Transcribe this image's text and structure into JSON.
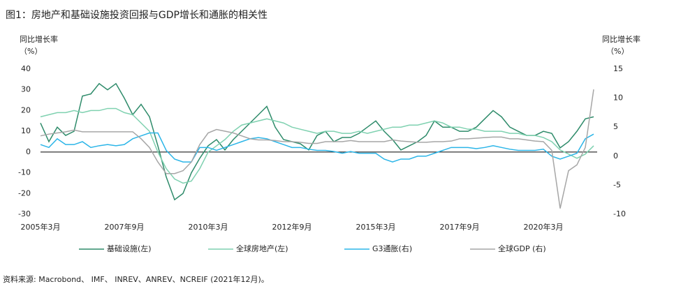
{
  "chart_data": {
    "type": "line",
    "title": "图1：房地产和基础设施投资回报与GDP增长和通胀的相关性",
    "ylabel": "同比增长率",
    "yunit": "（%）",
    "y2label": "同比增长率",
    "y2unit": "（%）",
    "source": "资料来源: Macrobond、 IMF、 INREV、ANREV、NCREIF (2021年12月)。",
    "categories": [
      "2005年3月",
      null,
      null,
      null,
      null,
      null,
      null,
      null,
      null,
      null,
      "2007年9月",
      null,
      null,
      null,
      null,
      null,
      null,
      null,
      null,
      null,
      "2010年3月",
      null,
      null,
      null,
      null,
      null,
      null,
      null,
      null,
      null,
      "2012年9月",
      null,
      null,
      null,
      null,
      null,
      null,
      null,
      null,
      null,
      "2015年3月",
      null,
      null,
      null,
      null,
      null,
      null,
      null,
      null,
      null,
      "2017年9月",
      null,
      null,
      null,
      null,
      null,
      null,
      null,
      null,
      null,
      "2020年3月",
      null,
      null,
      null,
      null,
      null,
      null
    ],
    "ylim": [
      -30,
      40
    ],
    "yticks": [
      -30,
      -20,
      -10,
      0,
      10,
      20,
      30,
      40
    ],
    "y2lim": [
      -10,
      15
    ],
    "y2ticks": [
      -10,
      -5,
      0,
      5,
      10,
      15
    ],
    "series": [
      {
        "name": "基础设施(左)",
        "color": "#2e8b6a",
        "values": [
          14,
          5,
          12,
          8,
          10,
          27,
          28,
          33,
          30,
          33,
          26,
          18,
          23,
          17,
          3,
          -12,
          -23,
          -20,
          -10,
          -3,
          3,
          6,
          1,
          6,
          10,
          14,
          18,
          22,
          12,
          6,
          5,
          4,
          1,
          8,
          10,
          5,
          7,
          7,
          9,
          12,
          15,
          10,
          6,
          1,
          3,
          5,
          8,
          15,
          12,
          12,
          10,
          10,
          12,
          16,
          20,
          17,
          12,
          10,
          8,
          8,
          10,
          9,
          2,
          5,
          10,
          16,
          17
        ]
      },
      {
        "name": "全球房地产(左)",
        "color": "#7fd1b0",
        "values": [
          17,
          18,
          19,
          19,
          20,
          19,
          20,
          20,
          21,
          21,
          19,
          18,
          14,
          10,
          0,
          -8,
          -13,
          -15,
          -14,
          -8,
          0,
          3,
          6,
          10,
          13,
          14,
          15,
          16,
          15,
          14,
          12,
          11,
          10,
          9,
          10,
          10,
          9,
          9,
          10,
          9,
          10,
          11,
          12,
          12,
          13,
          13,
          14,
          15,
          14,
          12,
          12,
          11,
          11,
          10,
          10,
          10,
          9,
          9,
          8,
          8,
          7,
          5,
          1,
          -1,
          -3,
          -1,
          3
        ]
      },
      {
        "name": "G3通胀(右)",
        "color": "#2bb5e8",
        "axis": "y2",
        "values": [
          2,
          1.5,
          3,
          2,
          2,
          2.5,
          1.5,
          1.8,
          2,
          1.8,
          2,
          3,
          3.5,
          4,
          4,
          1,
          -0.5,
          -1,
          -1,
          1.5,
          1.5,
          1,
          1.5,
          2,
          2.5,
          3,
          3.2,
          3,
          2.5,
          2,
          1.5,
          1.5,
          1.2,
          1,
          1,
          0.8,
          0.5,
          0.8,
          0.5,
          0.5,
          0.5,
          -0.5,
          -1,
          -0.5,
          -0.5,
          0,
          0,
          0.5,
          1,
          1.5,
          1.5,
          1.5,
          1.3,
          1.5,
          1.8,
          1.5,
          1.2,
          1,
          1,
          1,
          1.2,
          0,
          -0.5,
          0,
          0.5,
          3,
          3.8
        ]
      },
      {
        "name": "全球GDP (右)",
        "color": "#a6a6a6",
        "axis": "y2",
        "values": [
          3.5,
          3.8,
          4,
          4.2,
          4.5,
          4.2,
          4.2,
          4.2,
          4.2,
          4.2,
          4.2,
          4.2,
          3,
          1.5,
          -1,
          -3,
          -3,
          -2.5,
          -1,
          2,
          4,
          4.6,
          4.3,
          4,
          3.5,
          3,
          2.8,
          2.8,
          2.7,
          2.5,
          2.5,
          2.4,
          2.2,
          2.2,
          2.5,
          2.5,
          2.5,
          2.7,
          2.5,
          2.5,
          2.5,
          2.5,
          2.8,
          2.6,
          2.5,
          2.4,
          2.4,
          2.5,
          2.5,
          2.6,
          3,
          3,
          3.1,
          3.2,
          3.3,
          3.3,
          3,
          3,
          2.8,
          2.6,
          2.5,
          1,
          -9,
          -2.5,
          -1.5,
          1.5,
          11.5
        ]
      }
    ]
  }
}
